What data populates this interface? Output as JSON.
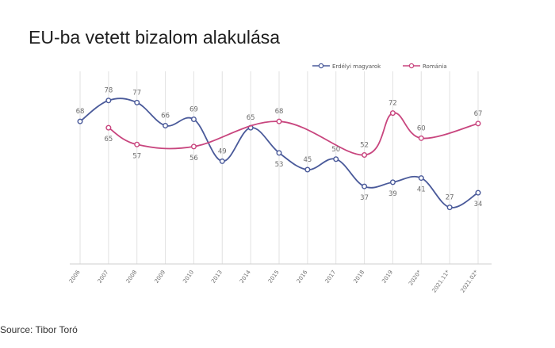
{
  "title": "EU-ba vetett bizalom alakulása",
  "source": "Source: Tibor Toró",
  "colors": {
    "series1": "#4a5a9a",
    "series2": "#c8457e",
    "grid": "#e2e2e2",
    "axis": "#cfcfcf"
  },
  "chart_data": {
    "type": "line",
    "x": [
      "2006",
      "2007",
      "2008",
      "2009",
      "2010",
      "2013",
      "2014",
      "2015",
      "2016",
      "2017",
      "2018",
      "2019",
      "2020*",
      "2021.11*",
      "2021.02*"
    ],
    "series": [
      {
        "name": "Erdélyi magyarok",
        "values": [
          68,
          78,
          77,
          66,
          69,
          49,
          65,
          53,
          45,
          50,
          37,
          39,
          41,
          27,
          34
        ]
      },
      {
        "name": "Románia",
        "values": [
          null,
          65,
          57,
          null,
          56,
          null,
          null,
          68,
          null,
          null,
          52,
          72,
          60,
          null,
          67
        ]
      }
    ],
    "ylim": [
      0,
      90
    ],
    "grid": "vertical",
    "legend": "top-right",
    "xlabel": "",
    "ylabel": ""
  }
}
